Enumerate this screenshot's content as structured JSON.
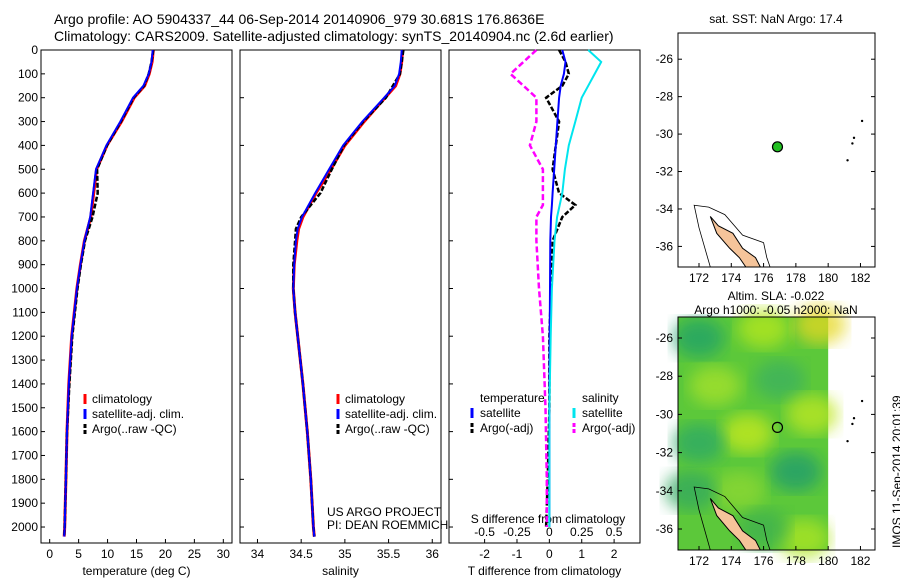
{
  "title": {
    "line1": "Argo profile: AO 5904337_44 06-Sep-2014 20140906_979 30.681S 176.8636E",
    "line2": "Climatology: CARS2009. Satellite-adjusted climatology: synTS_20140904.nc (2.6d earlier)"
  },
  "credit": {
    "line1": "US ARGO PROJECT",
    "line2": "PI: DEAN ROEMMICH"
  },
  "side_label": "IMOS 11-Sep-2014 20:01:39",
  "colors": {
    "clim": "#ff0000",
    "sat": "#0000ff",
    "argo": "#000000",
    "sat_s": "#00e5ee",
    "argo_s": "#ff00ff",
    "land": "#f5c49a",
    "map_green": "#6fd13a"
  },
  "chart_data": [
    {
      "type": "line",
      "name": "temperature",
      "xlabel": "temperature (deg C)",
      "ylabel": "",
      "xlim": [
        -1.5,
        31.5
      ],
      "ylim": [
        2067,
        0
      ],
      "xticks": [
        0,
        5,
        10,
        15,
        20,
        25,
        30
      ],
      "yticks": [
        0,
        100,
        200,
        300,
        400,
        500,
        600,
        700,
        800,
        900,
        1000,
        1100,
        1200,
        1300,
        1400,
        1500,
        1600,
        1700,
        1800,
        1900,
        2000
      ],
      "legend": [
        "climatology",
        "satellite-adj. clim.",
        "Argo(..raw -QC)"
      ],
      "depth": [
        0,
        50,
        100,
        150,
        200,
        300,
        400,
        500,
        600,
        700,
        800,
        900,
        1000,
        1200,
        1400,
        1600,
        1800,
        2000,
        2040
      ],
      "series": [
        {
          "name": "climatology",
          "values": [
            17.9,
            17.7,
            17.2,
            16.4,
            14.6,
            12.4,
            9.9,
            8.1,
            7.6,
            7.1,
            6.0,
            5.3,
            4.7,
            3.8,
            3.3,
            3.0,
            2.8,
            2.6,
            2.5
          ]
        },
        {
          "name": "satellite-adj. clim.",
          "values": [
            17.8,
            17.6,
            17.1,
            16.2,
            14.4,
            12.2,
            9.8,
            8.0,
            7.5,
            7.0,
            6.0,
            5.3,
            4.7,
            3.8,
            3.3,
            3.0,
            2.8,
            2.6,
            2.5
          ]
        },
        {
          "name": "Argo(..raw -QC)",
          "values": [
            17.9,
            17.6,
            17.1,
            16.3,
            14.5,
            12.3,
            9.9,
            8.2,
            8.3,
            7.4,
            6.1,
            5.4,
            4.8,
            3.9,
            3.4,
            3.0,
            2.8,
            2.6,
            2.5
          ]
        }
      ]
    },
    {
      "type": "line",
      "name": "salinity",
      "xlabel": "salinity",
      "ylabel": "",
      "xlim": [
        33.8,
        36.1
      ],
      "ylim": [
        2067,
        0
      ],
      "xticks": [
        34,
        34.5,
        35,
        35.5,
        36
      ],
      "legend": [
        "climatology",
        "satellite-adj. clim.",
        "Argo(..raw -QC)"
      ],
      "depth": [
        0,
        50,
        100,
        150,
        200,
        300,
        400,
        500,
        600,
        700,
        750,
        800,
        900,
        1000,
        1100,
        1200,
        1400,
        1600,
        1800,
        2000,
        2040
      ],
      "series": [
        {
          "name": "climatology",
          "values": [
            35.66,
            35.65,
            35.63,
            35.58,
            35.46,
            35.22,
            35.0,
            34.84,
            34.67,
            34.52,
            34.47,
            34.45,
            34.42,
            34.41,
            34.43,
            34.46,
            34.52,
            34.57,
            34.61,
            34.64,
            34.65
          ]
        },
        {
          "name": "satellite-adj. clim.",
          "values": [
            35.65,
            35.64,
            35.62,
            35.57,
            35.45,
            35.2,
            34.98,
            34.82,
            34.66,
            34.51,
            34.46,
            34.44,
            34.42,
            34.41,
            34.43,
            34.46,
            34.52,
            34.57,
            34.61,
            34.64,
            34.65
          ]
        },
        {
          "name": "Argo(..raw -QC)",
          "values": [
            35.67,
            35.65,
            35.63,
            35.55,
            35.47,
            35.21,
            34.99,
            34.85,
            34.72,
            34.5,
            34.44,
            34.43,
            34.41,
            34.41,
            34.43,
            34.46,
            34.52,
            34.57,
            34.61,
            34.64,
            34.65
          ]
        }
      ]
    },
    {
      "type": "line",
      "name": "difference",
      "xlabel": "T difference from climatology",
      "x2label": "S difference from climatology",
      "xlim": [
        -3.1,
        2.8
      ],
      "xticks": [
        -2,
        -1,
        0,
        1,
        2
      ],
      "x2ticks": [
        -0.5,
        -0.25,
        0,
        0.25,
        0.5
      ],
      "x2tick_labels": [
        "-0.5",
        "-0.25",
        "0",
        "0.25",
        "0.5"
      ],
      "legend": {
        "temperature": "temperature",
        "salinity": "salinity",
        "t_sat": "satellite",
        "t_argo": "Argo(-adj)",
        "s_sat": "satellite",
        "s_argo": "Argo(-adj)"
      },
      "depth": [
        0,
        50,
        100,
        150,
        200,
        300,
        400,
        500,
        600,
        650,
        700,
        800,
        1000,
        1200,
        1500,
        1800,
        2000
      ],
      "series": [
        {
          "name": "T satellite",
          "values": [
            0.4,
            0.5,
            0.45,
            0.35,
            0.3,
            0.25,
            0.2,
            0.15,
            0.1,
            0.08,
            0.05,
            0.03,
            0.02,
            0.01,
            0.0,
            0.0,
            0.0
          ]
        },
        {
          "name": "T Argo(-adj)",
          "values": [
            0.3,
            0.5,
            0.6,
            0.4,
            -0.1,
            0.3,
            0.2,
            0.1,
            0.3,
            0.8,
            0.4,
            0.1,
            0.05,
            0.0,
            0.0,
            -0.05,
            -0.1
          ]
        },
        {
          "name": "S satellite",
          "values": [
            0.3,
            0.4,
            0.35,
            0.3,
            0.25,
            0.2,
            0.15,
            0.12,
            0.1,
            0.08,
            0.06,
            0.04,
            0.02,
            0.01,
            0.0,
            0.0,
            0.0
          ]
        },
        {
          "name": "S Argo(-adj)",
          "values": [
            -0.1,
            -0.2,
            -0.3,
            -0.2,
            -0.1,
            -0.1,
            -0.15,
            -0.05,
            -0.05,
            -0.05,
            -0.1,
            -0.1,
            -0.08,
            -0.05,
            -0.03,
            -0.02,
            -0.02
          ]
        }
      ]
    },
    {
      "type": "scatter",
      "name": "sst-map",
      "title": "sat. SST: NaN Argo: 17.4",
      "xlim": [
        170.7,
        182.9
      ],
      "ylim": [
        -37.1,
        -24.6
      ],
      "xticks": [
        172,
        174,
        176,
        178,
        180,
        182
      ],
      "yticks": [
        -26,
        -28,
        -30,
        -32,
        -34,
        -36
      ],
      "points": [
        {
          "lon": 176.86,
          "lat": -30.68
        }
      ]
    },
    {
      "type": "heatmap",
      "name": "sla-map",
      "title1": "Altim. SLA: -0.022",
      "title2": "Argo h1000: -0.05 h2000: NaN",
      "xlim": [
        170.7,
        182.9
      ],
      "ylim": [
        -37.1,
        -24.9
      ],
      "xticks": [
        172,
        174,
        176,
        178,
        180,
        182
      ],
      "yticks": [
        -26,
        -28,
        -30,
        -32,
        -34,
        -36
      ],
      "points": [
        {
          "lon": 176.86,
          "lat": -30.68
        }
      ]
    }
  ]
}
